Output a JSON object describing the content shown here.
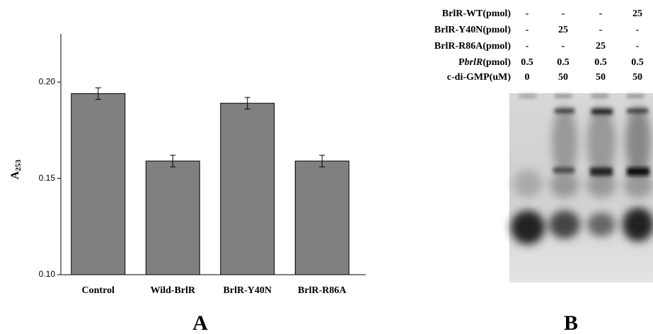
{
  "chart_data": {
    "type": "bar",
    "y_label": {
      "text": "A",
      "subscript": "253"
    },
    "categories": [
      "Control",
      "Wild-BrlR",
      "BrlR-Y40N",
      "BrlR-R86A"
    ],
    "values": [
      0.194,
      0.159,
      0.189,
      0.159
    ],
    "errors": [
      0.003,
      0.003,
      0.003,
      0.003
    ],
    "color": "#808080",
    "ylim": [
      0.1,
      0.225
    ],
    "yticks": [
      {
        "value": 0.1,
        "label": "0.10"
      },
      0.15,
      {
        "value": 0.2,
        "label": "0.20"
      }
    ],
    "grid": false
  },
  "panel_labels": [
    "A",
    "B"
  ],
  "gel_table": {
    "rows": [
      {
        "label": "BrlR-WT(pmol)",
        "cells": [
          "-",
          "-",
          "-",
          "25"
        ]
      },
      {
        "label": "BrlR-Y40N(pmol)",
        "cells": [
          "-",
          "25",
          "-",
          "-"
        ]
      },
      {
        "label": "BrlR-R86A(pmol)",
        "cells": [
          "-",
          "-",
          "25",
          "-"
        ]
      },
      {
        "label": {
          "prefix": "P",
          "italic": "brlR",
          "suffix": "(pmol)"
        },
        "cells": [
          "0.5",
          "0.5",
          "0.5",
          "0.5"
        ]
      },
      {
        "label": "c-di-GMP(uM)",
        "cells": [
          "0",
          "50",
          "50",
          "50"
        ]
      }
    ]
  }
}
